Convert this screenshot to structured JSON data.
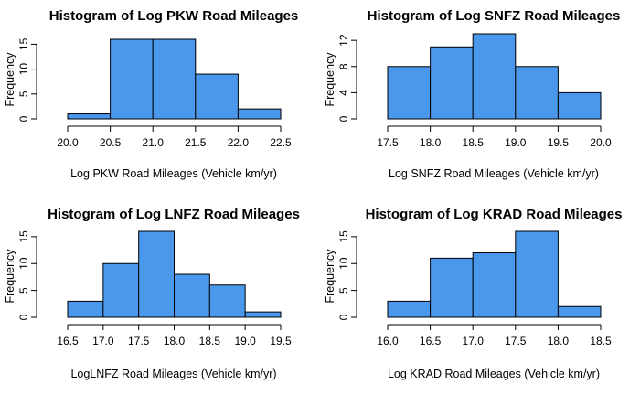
{
  "colors": {
    "bar_fill": "#4a98ec",
    "bar_stroke": "#000000"
  },
  "chart_data": [
    {
      "type": "bar",
      "title": "Histogram of Log PKW Road Mileages",
      "xlabel": "Log PKW Road Mileages (Vehicle km/yr)",
      "ylabel": "Frequency",
      "bin_edges": [
        20.0,
        20.5,
        21.0,
        21.5,
        22.0,
        22.5
      ],
      "values": [
        1,
        16,
        16,
        9,
        2
      ],
      "xlim": [
        20.0,
        22.5
      ],
      "xticks": [
        "20.0",
        "20.5",
        "21.0",
        "21.5",
        "22.0",
        "22.5"
      ],
      "ylim": [
        0,
        16
      ],
      "yticks": [
        "0",
        "5",
        "10",
        "15"
      ]
    },
    {
      "type": "bar",
      "title": "Histogram of Log SNFZ Road Mileages",
      "xlabel": "Log SNFZ Road Mileages (Vehicle km/yr)",
      "ylabel": "Frequency",
      "bin_edges": [
        17.5,
        18.0,
        18.5,
        19.0,
        19.5,
        20.0
      ],
      "values": [
        8,
        11,
        13,
        8,
        4
      ],
      "xlim": [
        17.5,
        20.0
      ],
      "xticks": [
        "17.5",
        "18.0",
        "18.5",
        "19.0",
        "19.5",
        "20.0"
      ],
      "ylim": [
        0,
        13
      ],
      "yticks": [
        "0",
        "4",
        "8",
        "12"
      ]
    },
    {
      "type": "bar",
      "title": "Histogram of Log LNFZ Road Mileages",
      "xlabel": "LogLNFZ Road Mileages (Vehicle km/yr)",
      "ylabel": "Frequency",
      "bin_edges": [
        16.5,
        17.0,
        17.5,
        18.0,
        18.5,
        19.0,
        19.5
      ],
      "values": [
        3,
        10,
        16,
        8,
        6,
        1
      ],
      "xlim": [
        16.5,
        19.5
      ],
      "xticks": [
        "16.5",
        "17.0",
        "17.5",
        "18.0",
        "18.5",
        "19.0",
        "19.5"
      ],
      "ylim": [
        0,
        16
      ],
      "yticks": [
        "0",
        "5",
        "10",
        "15"
      ]
    },
    {
      "type": "bar",
      "title": "Histogram of Log KRAD Road Mileages",
      "xlabel": "Log KRAD Road Mileages (Vehicle km/yr)",
      "ylabel": "Frequency",
      "bin_edges": [
        16.0,
        16.5,
        17.0,
        17.5,
        18.0,
        18.5
      ],
      "values": [
        3,
        11,
        12,
        16,
        2
      ],
      "xlim": [
        16.0,
        18.5
      ],
      "xticks": [
        "16.0",
        "16.5",
        "17.0",
        "17.5",
        "18.0",
        "18.5"
      ],
      "ylim": [
        0,
        16
      ],
      "yticks": [
        "0",
        "5",
        "10",
        "15"
      ]
    }
  ]
}
